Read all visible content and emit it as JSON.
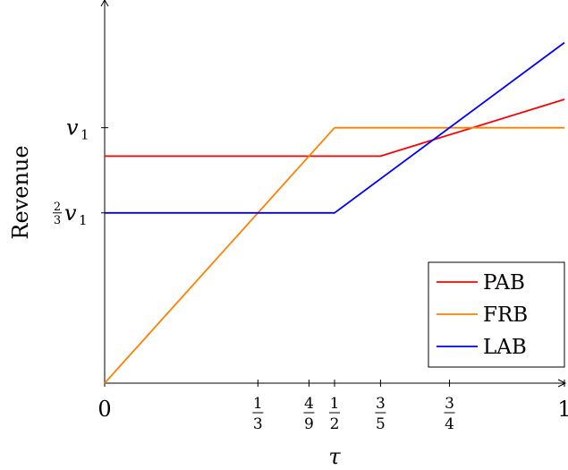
{
  "chart_data": {
    "type": "line",
    "xlabel": "τ",
    "ylabel": "Revenue",
    "xlim": [
      0,
      1
    ],
    "ylim": [
      0,
      1.5
    ],
    "grid": false,
    "legend_position": "bottom-right",
    "x_ticks": [
      {
        "value": 0,
        "label": "0"
      },
      {
        "value": 0.3333,
        "num": "1",
        "den": "3"
      },
      {
        "value": 0.4444,
        "num": "4",
        "den": "9"
      },
      {
        "value": 0.5,
        "num": "1",
        "den": "2"
      },
      {
        "value": 0.6,
        "num": "3",
        "den": "5"
      },
      {
        "value": 0.75,
        "num": "3",
        "den": "4"
      },
      {
        "value": 1,
        "label": "1"
      }
    ],
    "y_ticks": [
      {
        "value": 1,
        "label": "v",
        "sub": "1"
      },
      {
        "value": 0.6667,
        "prefix_num": "2",
        "prefix_den": "3",
        "label": "v",
        "sub": "1"
      }
    ],
    "series": [
      {
        "name": "PAB",
        "color": "#ff0000",
        "x": [
          0,
          0.6,
          1
        ],
        "y": [
          0.8889,
          0.8889,
          1.1111
        ]
      },
      {
        "name": "FRB",
        "color": "#ff8000",
        "x": [
          0,
          0.5,
          1
        ],
        "y": [
          0,
          1,
          1
        ]
      },
      {
        "name": "LAB",
        "color": "#0000ff",
        "x": [
          0,
          0.5,
          1
        ],
        "y": [
          0.6667,
          0.6667,
          1.3333
        ]
      }
    ]
  }
}
